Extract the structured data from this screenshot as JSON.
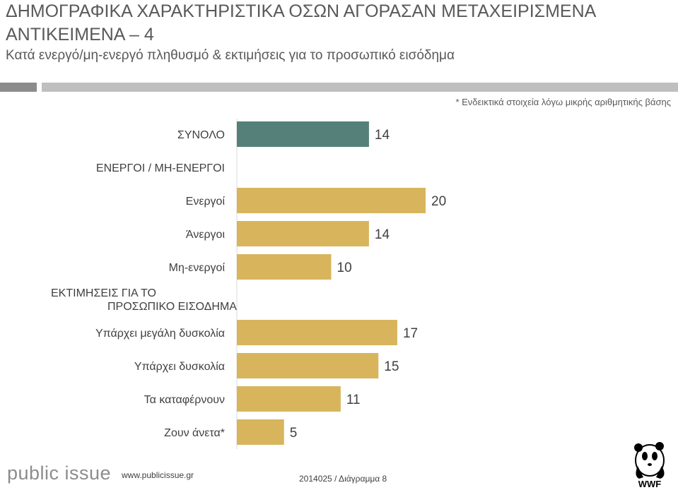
{
  "header": {
    "title": "ΔΗΜΟΓΡΑΦΙΚΑ ΧΑΡΑΚΤΗΡΙΣΤΙΚΑ ΟΣΩΝ ΑΓΟΡΑΣΑΝ ΜΕΤΑΧΕΙΡΙΣΜΕΝΑ ΑΝΤΙΚΕΙΜΕΝΑ – 4",
    "subtitle": "Κατά ενεργό/μη-ενεργό πληθυσμό & εκτιμήσεις για το προσωπικό εισόδημα",
    "note": "* Ενδεικτικά στοιχεία λόγω μικρής αριθμητικής βάσης"
  },
  "footer": {
    "logo": "public issue",
    "url": "www.publicissue.gr",
    "ref": "2014025 / Διάγραμμα 8",
    "wwf": "WWF"
  },
  "chart_data": {
    "type": "bar",
    "orientation": "horizontal",
    "colors": {
      "total": "#548079",
      "group": "#d8b55c",
      "text": "#404040"
    },
    "rows": [
      {
        "kind": "bar",
        "label": "ΣΥΝΟΛΟ",
        "value": 14,
        "color": "total"
      },
      {
        "kind": "header",
        "label": "ΕΝΕΡΓΟΙ / ΜΗ-ΕΝΕΡΓΟΙ"
      },
      {
        "kind": "bar",
        "label": "Ενεργοί",
        "value": 20,
        "color": "group"
      },
      {
        "kind": "bar",
        "label": "Άνεργοι",
        "value": 14,
        "color": "group"
      },
      {
        "kind": "bar",
        "label": "Μη-ενεργοί",
        "value": 10,
        "color": "group"
      },
      {
        "kind": "header",
        "label": "ΕΚΤΙΜΗΣΕΙΣ ΓΙΑ ΤΟ ΠΡΟΣΩΠΙΚΟ ΕΙΣΟΔΗΜΑ"
      },
      {
        "kind": "bar",
        "label": "Υπάρχει μεγάλη δυσκολία",
        "value": 17,
        "color": "group"
      },
      {
        "kind": "bar",
        "label": "Υπάρχει δυσκολία",
        "value": 15,
        "color": "group"
      },
      {
        "kind": "bar",
        "label": "Τα καταφέρνουν",
        "value": 11,
        "color": "group"
      },
      {
        "kind": "bar",
        "label": "Ζουν άνετα*",
        "value": 5,
        "color": "group"
      }
    ],
    "xlim": [
      0,
      20
    ]
  }
}
